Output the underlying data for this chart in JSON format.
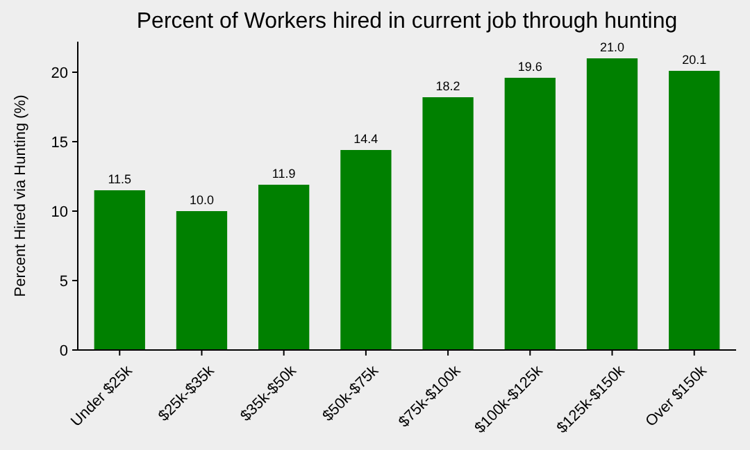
{
  "chart_data": {
    "type": "bar",
    "title": "Percent of Workers hired in current job through hunting",
    "ylabel": "Percent Hired via Hunting (%)",
    "categories": [
      "Under $25k",
      "$25k-$35k",
      "$35k-$50k",
      "$50k-$75k",
      "$75k-$100k",
      "$100k-$125k",
      "$125k-$150k",
      "Over $150k"
    ],
    "values": [
      11.5,
      10.0,
      11.9,
      14.4,
      18.2,
      19.6,
      21.0,
      20.1
    ],
    "value_labels": [
      "11.5",
      "10.0",
      "11.9",
      "14.4",
      "18.2",
      "19.6",
      "21.0",
      "20.1"
    ],
    "color": "#008000",
    "ylim": [
      0,
      22.2
    ],
    "yticks": [
      0,
      5,
      10,
      15,
      20
    ]
  }
}
